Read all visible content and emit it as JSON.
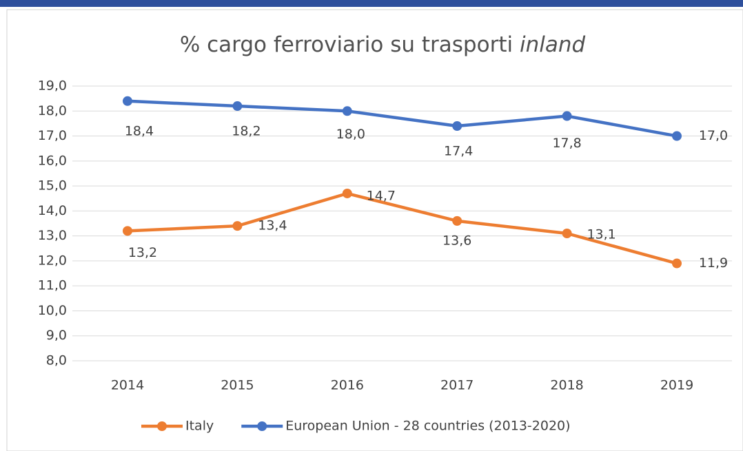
{
  "chart_data": {
    "type": "line",
    "title": [
      "% cargo ferroviario su trasporti",
      "inland"
    ],
    "categories": [
      "2014",
      "2015",
      "2016",
      "2017",
      "2018",
      "2019"
    ],
    "series": [
      {
        "name": "Italy",
        "color": "#ed7d31",
        "values": [
          13.2,
          13.4,
          14.7,
          13.6,
          13.1,
          11.9
        ],
        "value_labels": [
          "13,2",
          "13,4",
          "14,7",
          "13,6",
          "13,1",
          "11,9"
        ]
      },
      {
        "name": "European Union - 28 countries (2013-2020)",
        "color": "#4472c4",
        "values": [
          18.4,
          18.2,
          18.0,
          17.4,
          17.8,
          17.0
        ],
        "value_labels": [
          "18,4",
          "18,2",
          "18,0",
          "17,4",
          "17,8",
          "17,0"
        ]
      }
    ],
    "ylim": [
      8,
      19
    ],
    "yticks": [
      {
        "value": 8,
        "label": "8,0"
      },
      {
        "value": 9,
        "label": "9,0"
      },
      {
        "value": 10,
        "label": "10,0"
      },
      {
        "value": 11,
        "label": "11,0"
      },
      {
        "value": 12,
        "label": "12,0"
      },
      {
        "value": 13,
        "label": "13,0"
      },
      {
        "value": 14,
        "label": "14,0"
      },
      {
        "value": 15,
        "label": "15,0"
      },
      {
        "value": 16,
        "label": "16,0"
      },
      {
        "value": 17,
        "label": "17,0"
      },
      {
        "value": 18,
        "label": "18,0"
      },
      {
        "value": 19,
        "label": "19,0"
      }
    ],
    "grid": true,
    "legend": "bottom"
  }
}
